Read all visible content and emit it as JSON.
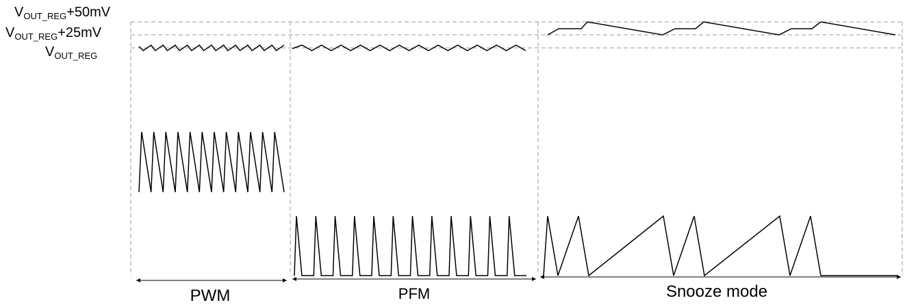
{
  "voltage_labels": [
    {
      "base": "V",
      "sub": "OUT_REG",
      "suffix": "+50mV"
    },
    {
      "base": "V",
      "sub": "OUT_REG",
      "suffix": "+25mV"
    },
    {
      "base": "V",
      "sub": "OUT_REG",
      "suffix": ""
    }
  ],
  "modes": [
    "PWM",
    "PFM",
    "Snooze mode"
  ],
  "colors": {
    "stroke": "#000000",
    "guide": "#999999"
  }
}
